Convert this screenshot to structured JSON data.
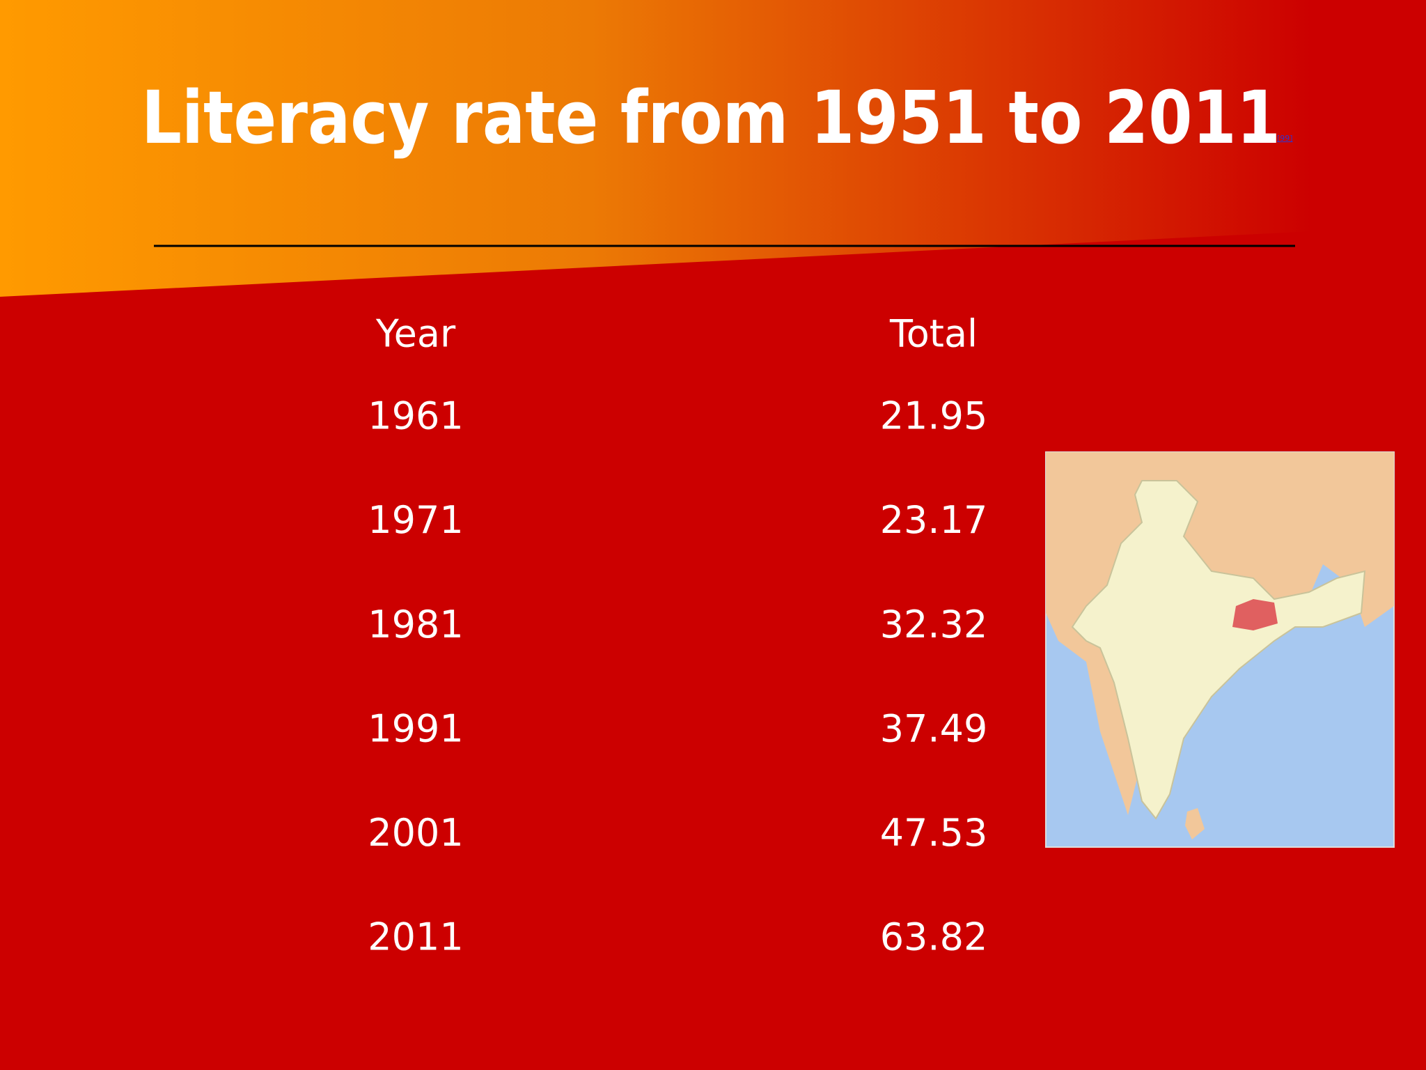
{
  "title": "Literacy rate from 1951 to 2011",
  "title_reference": "[99]",
  "table": {
    "columns": [
      "Year",
      "Total"
    ],
    "rows": [
      [
        1961,
        21.95
      ],
      [
        1971,
        23.17
      ],
      [
        1981,
        32.32
      ],
      [
        1991,
        37.49
      ],
      [
        2001,
        47.53
      ],
      [
        2011,
        63.82
      ]
    ]
  }
}
